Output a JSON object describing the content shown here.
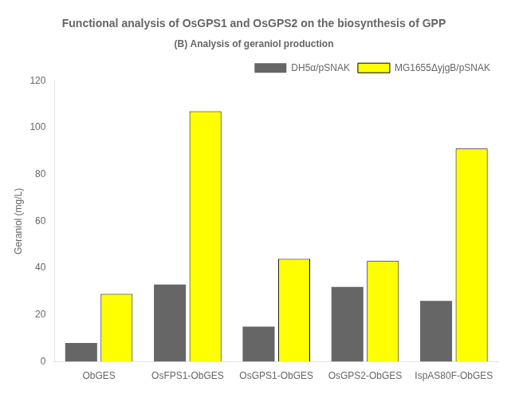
{
  "chart_data": {
    "type": "bar",
    "title": "Functional analysis of OsGPS1 and OsGPS2 on the biosynthesis of GPP",
    "subtitle": "(B) Analysis of geraniol production",
    "categories": [
      "ObGES",
      "OsFPS1-ObGES",
      "OsGPS1-ObGES",
      "OsGPS2-ObGES",
      "IspAS80F-ObGES"
    ],
    "series": [
      {
        "name": "DH5α/pSNAK",
        "color": "#666666",
        "values": [
          8,
          33,
          15,
          32,
          26
        ]
      },
      {
        "name": "MG1655ΔyjgB/pSNAK",
        "color": "#ffff00",
        "values": [
          29,
          107,
          44,
          43,
          91
        ]
      }
    ],
    "ylabel": "Geraniol (mg/L)",
    "ylim": [
      0,
      120
    ],
    "yticks": [
      0,
      20,
      40,
      60,
      80,
      100,
      120
    ],
    "grid": false,
    "legend": "upper right"
  }
}
